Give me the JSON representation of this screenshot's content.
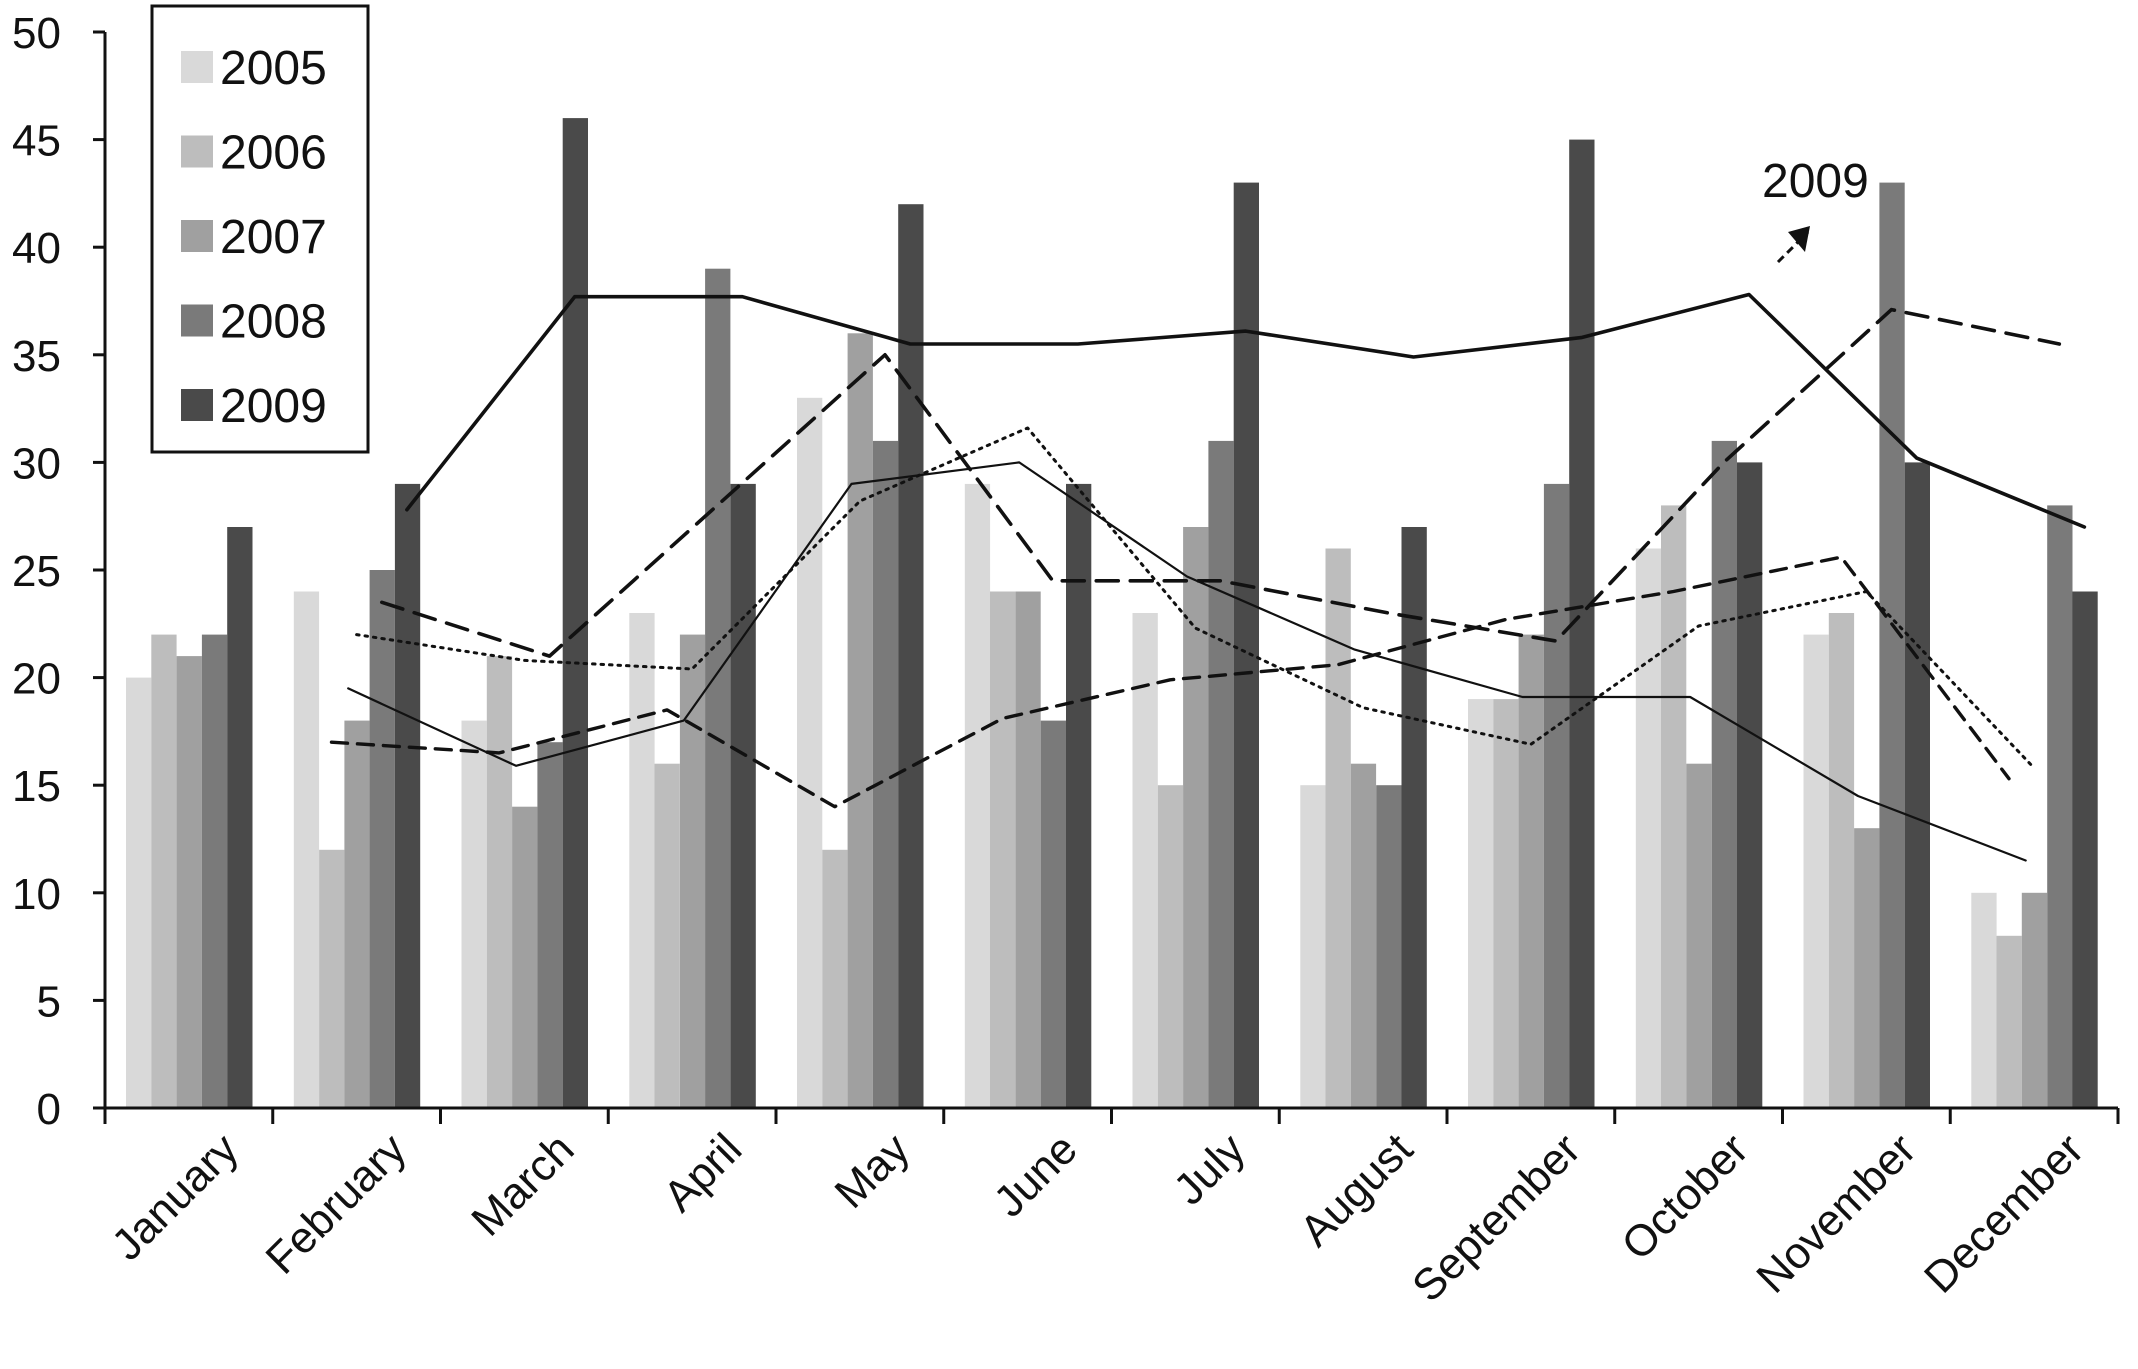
{
  "chart_data": {
    "type": "bar",
    "categories": [
      "January",
      "February",
      "March",
      "April",
      "May",
      "June",
      "July",
      "August",
      "September",
      "October",
      "November",
      "December"
    ],
    "ylim": [
      0,
      50
    ],
    "yticks": [
      0,
      5,
      10,
      15,
      20,
      25,
      30,
      35,
      40,
      45,
      50
    ],
    "grid": false,
    "legend_position": "top-left",
    "series": [
      {
        "name": "2005",
        "color": "#d9d9d9",
        "values": [
          20,
          24,
          18,
          23,
          33,
          29,
          23,
          15,
          19,
          26,
          22,
          10
        ]
      },
      {
        "name": "2006",
        "color": "#bdbdbd",
        "values": [
          22,
          12,
          21,
          16,
          12,
          24,
          15,
          26,
          19,
          28,
          23,
          8
        ]
      },
      {
        "name": "2007",
        "color": "#a0a0a0",
        "values": [
          21,
          18,
          14,
          22,
          36,
          24,
          27,
          16,
          22,
          16,
          13,
          10
        ]
      },
      {
        "name": "2008",
        "color": "#7a7a7a",
        "values": [
          22,
          25,
          17,
          39,
          31,
          18,
          31,
          15,
          29,
          31,
          43,
          28
        ]
      },
      {
        "name": "2009",
        "color": "#4a4a4a",
        "values": [
          27,
          29,
          46,
          29,
          42,
          29,
          43,
          27,
          45,
          30,
          30,
          24
        ]
      }
    ],
    "trend_lines": [
      {
        "style": "solid-thick",
        "x": [
          1.8,
          2.8,
          3.8,
          4.8,
          5.8,
          6.8,
          7.8,
          8.8,
          9.8,
          10.8,
          11.8
        ],
        "values": [
          27.8,
          37.7,
          37.7,
          35.5,
          35.5,
          36.1,
          34.9,
          35.8,
          37.8,
          30.2,
          27
        ]
      },
      {
        "style": "dashed-long",
        "x": [
          1.65,
          2.65,
          3.65,
          4.65,
          5.65,
          6.65,
          7.65,
          8.65,
          9.65,
          10.65,
          11.65
        ],
        "values": [
          23.5,
          21,
          28,
          35,
          24.5,
          24.5,
          23,
          21.7,
          30,
          37.1,
          35.5
        ]
      },
      {
        "style": "dotted",
        "x": [
          1.5,
          2.5,
          3.5,
          4.5,
          5.5,
          6.5,
          7.5,
          8.5,
          9.5,
          10.5,
          11.5
        ],
        "values": [
          22,
          20.8,
          20.4,
          28.2,
          31.6,
          22.3,
          18.6,
          16.9,
          22.4,
          24,
          15.8
        ]
      },
      {
        "style": "solid-thin",
        "x": [
          1.45,
          2.45,
          3.45,
          4.45,
          5.45,
          6.45,
          7.45,
          8.45,
          9.45,
          10.45,
          11.45
        ],
        "values": [
          19.5,
          15.9,
          18,
          29,
          30,
          24.7,
          21.3,
          19.1,
          19.1,
          14.5,
          11.5
        ]
      },
      {
        "style": "dashed-medium",
        "x": [
          1.35,
          2.35,
          3.35,
          4.35,
          5.35,
          6.35,
          7.35,
          8.35,
          9.35,
          10.35,
          11.35
        ],
        "values": [
          17,
          16.5,
          18.5,
          14,
          18.1,
          19.9,
          20.6,
          22.7,
          24,
          25.6,
          15.3
        ]
      }
    ],
    "annotation": {
      "text": "2009",
      "arrow": true
    }
  }
}
